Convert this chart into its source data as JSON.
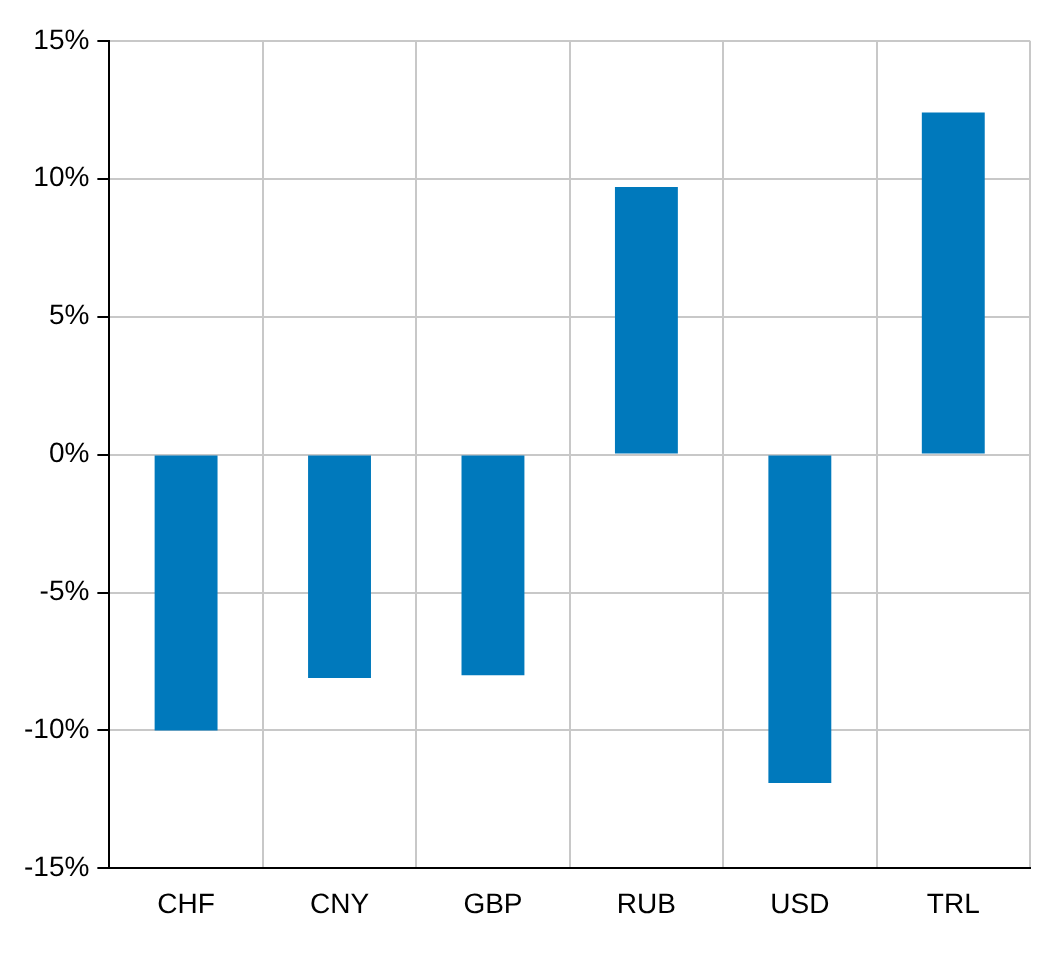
{
  "chart_data": {
    "type": "bar",
    "categories": [
      "CHF",
      "CNY",
      "GBP",
      "RUB",
      "USD",
      "TRL"
    ],
    "values": [
      -10.0,
      -8.1,
      -8.0,
      9.7,
      -11.9,
      12.4
    ],
    "color": "#0079bc",
    "ylim": [
      -15,
      15
    ],
    "yticks": [
      {
        "value": -15,
        "label": "-15%"
      },
      {
        "value": -10,
        "label": "-10%"
      },
      {
        "value": -5,
        "label": "-5%"
      },
      {
        "value": 0,
        "label": "0%"
      },
      {
        "value": 5,
        "label": "5%"
      },
      {
        "value": 10,
        "label": "10%"
      },
      {
        "value": 15,
        "label": "15%"
      }
    ],
    "grid": true,
    "legend": false
  }
}
